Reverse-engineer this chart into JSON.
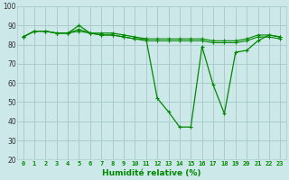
{
  "xlabel": "Humidité relative (%)",
  "bg_color": "#cce8e8",
  "grid_color": "#aacccc",
  "line_color": "#008800",
  "xlim_min": -0.5,
  "xlim_max": 23.5,
  "ylim_min": 20,
  "ylim_max": 100,
  "yticks": [
    20,
    30,
    40,
    50,
    60,
    70,
    80,
    90,
    100
  ],
  "xticks": [
    0,
    1,
    2,
    3,
    4,
    5,
    6,
    7,
    8,
    9,
    10,
    11,
    12,
    13,
    14,
    15,
    16,
    17,
    18,
    19,
    20,
    21,
    22,
    23
  ],
  "series1": [
    84,
    87,
    87,
    86,
    86,
    90,
    86,
    86,
    86,
    85,
    84,
    83,
    52,
    45,
    37,
    37,
    79,
    59,
    44,
    76,
    77,
    82,
    85,
    84
  ],
  "series2": [
    84,
    87,
    87,
    86,
    86,
    88,
    86,
    85,
    85,
    84,
    83,
    83,
    83,
    83,
    83,
    83,
    83,
    82,
    82,
    82,
    83,
    85,
    85,
    84
  ],
  "series3": [
    84,
    87,
    87,
    86,
    86,
    87,
    86,
    85,
    85,
    84,
    83,
    82,
    82,
    82,
    82,
    82,
    82,
    81,
    81,
    81,
    82,
    84,
    84,
    83
  ]
}
